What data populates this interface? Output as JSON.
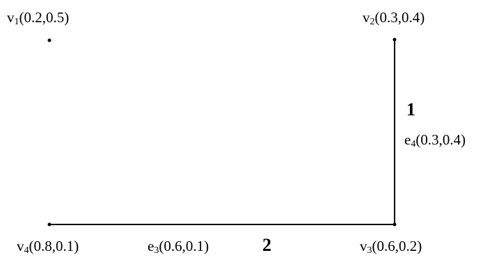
{
  "graph": {
    "vertices": {
      "v1": {
        "name": "v",
        "index": "1",
        "values": "(0.2,0.5)"
      },
      "v2": {
        "name": "v",
        "index": "2",
        "values": "(0.3,0.4)"
      },
      "v3": {
        "name": "v",
        "index": "3",
        "values": "(0.6,0.2)"
      },
      "v4": {
        "name": "v",
        "index": "4",
        "values": "(0.8,0.1)"
      }
    },
    "edges": {
      "e3": {
        "name": "e",
        "index": "3",
        "values": "(0.6,0.1)",
        "weight": "2",
        "from": "v4",
        "to": "v3"
      },
      "e4": {
        "name": "e",
        "index": "4",
        "values": "(0.3,0.4)",
        "weight": "1",
        "from": "v2",
        "to": "v3"
      }
    },
    "colors": {
      "line": "#000000",
      "background": "#ffffff"
    }
  }
}
